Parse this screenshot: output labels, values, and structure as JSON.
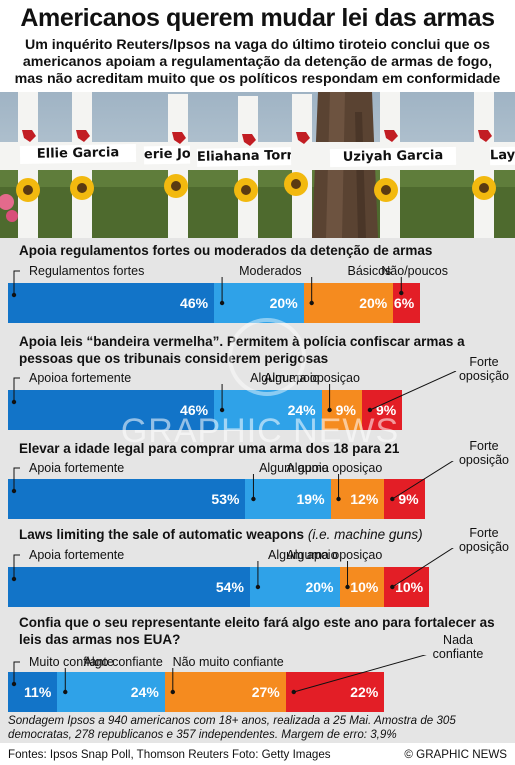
{
  "title": "Americanos querem mudar lei das armas",
  "subtitle": "Um inquérito Reuters/Ipsos na vaga do último tiroteio conclui que os americanos apoiam a regulamentação da detenção de armas de fogo, mas não acreditam muito que os políticos respondam em conformidade",
  "photo": {
    "names": [
      "Ellie Garcia",
      "erie Jo",
      "Eliahana Torres",
      "Uziyah Garcia",
      "Lay"
    ]
  },
  "colors": {
    "dark_blue": "#1274c8",
    "light_blue": "#2fa2e8",
    "orange": "#f58b1f",
    "red": "#e31e26",
    "panel_bg": "#e5e5e5"
  },
  "chart_data": [
    {
      "type": "bar",
      "title": "Apoia regulamentos fortes ou moderados da detenção de armas",
      "categories": [
        "Regulamentos fortes",
        "Moderados",
        "Básicos",
        "Não/poucos"
      ],
      "values": [
        46,
        20,
        20,
        6
      ],
      "labels": [
        "46%",
        "20%",
        "20%",
        "6%"
      ]
    },
    {
      "type": "bar",
      "title": "Apoia leis “bandeira vermelha”. Permitem à polícia confiscar armas a pessoas que os tribunais considerem perigosas",
      "categories": [
        "Apoioa fortemente",
        "Algum apoio",
        "Alguma oposiçao",
        "Forte oposição"
      ],
      "values": [
        46,
        24,
        9,
        9
      ],
      "labels": [
        "46%",
        "24%",
        "9%",
        "9%"
      ]
    },
    {
      "type": "bar",
      "title": "Elevar a idade legal para comprar uma arma dos 18 para 21",
      "categories": [
        "Apoia fortemente",
        "Algum apoio",
        "Alguma oposiçao",
        "Forte oposição"
      ],
      "values": [
        53,
        19,
        12,
        9
      ],
      "labels": [
        "53%",
        "19%",
        "12%",
        "9%"
      ]
    },
    {
      "type": "bar",
      "title": "Laws limiting the sale of automatic weapons",
      "title_note": "(i.e. machine guns)",
      "categories": [
        "Apoia fortemente",
        "Algum apoio",
        "Alguma oposiçao",
        "Forte oposição"
      ],
      "values": [
        54,
        20,
        10,
        10
      ],
      "labels": [
        "54%",
        "20%",
        "10%",
        "10%"
      ]
    },
    {
      "type": "bar",
      "title": "Confia que o seu representante eleito fará algo este ano para fortalecer as leis das armas nos EUA?",
      "categories": [
        "Muito confiante",
        "Algo confiante",
        "Não muito confiante",
        "Nada confiante"
      ],
      "values": [
        11,
        24,
        27,
        22
      ],
      "labels": [
        "11%",
        "24%",
        "27%",
        "22%"
      ]
    }
  ],
  "note": "Sondagem Ipsos a 940 americanos com 18+ anos, realizada a 25 Mai. Amostra de 305 democratas, 278 republicanos e 357 independentes. Margem de erro: 3,9%",
  "footer": {
    "sources": "Fontes: Ipsos Snap Poll, Thomson Reuters",
    "photo_credit": "Foto: Getty Images",
    "copyright": "© GRAPHIC NEWS"
  },
  "watermark": "GRAPHIC NEWS"
}
